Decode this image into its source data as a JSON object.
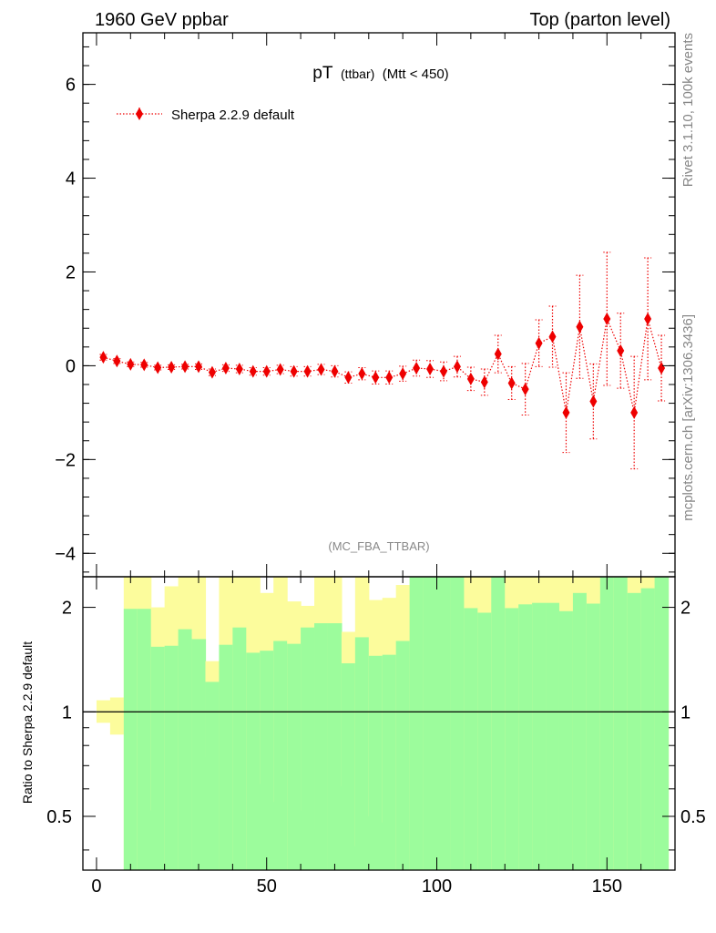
{
  "header": {
    "left": "1960 GeV ppbar",
    "right": "Top (parton level)"
  },
  "side_text": {
    "rivet": "Rivet 3.1.10,  100k events",
    "mcplots": "mcplots.cern.ch [arXiv:1306.3436]"
  },
  "colors": {
    "series": "#ee0000",
    "band_inner": "#9cfc9c",
    "band_outer": "#fcfc9c",
    "axis": "#000000",
    "watermark": "#888888"
  },
  "chart_data": [
    {
      "type": "scatter",
      "title_main": "pT",
      "title_sub": "(ttbar)",
      "title_cond": "(Mtt < 450)",
      "watermark": "(MC_FBA_TTBAR)",
      "legend": "Sherpa 2.2.9 default",
      "legend_position": "top-left",
      "xlim": [
        -4,
        170
      ],
      "ylim": [
        -4.5,
        7.1
      ],
      "yticks": [
        -4,
        -2,
        0,
        2,
        4,
        6
      ],
      "ytick_labels": [
        "−4",
        "−2",
        "0",
        "2",
        "4",
        "6"
      ],
      "series": [
        {
          "name": "Sherpa 2.2.9 default",
          "x": [
            2,
            6,
            10,
            14,
            18,
            22,
            26,
            30,
            34,
            38,
            42,
            46,
            50,
            54,
            58,
            62,
            66,
            70,
            74,
            78,
            82,
            86,
            90,
            94,
            98,
            102,
            106,
            110,
            114,
            118,
            122,
            126,
            130,
            134,
            138,
            142,
            146,
            150,
            154,
            158,
            162,
            166
          ],
          "y": [
            0.18,
            0.1,
            0.03,
            0.02,
            -0.04,
            -0.03,
            -0.02,
            -0.02,
            -0.14,
            -0.05,
            -0.07,
            -0.12,
            -0.12,
            -0.08,
            -0.12,
            -0.12,
            -0.08,
            -0.12,
            -0.25,
            -0.17,
            -0.25,
            -0.25,
            -0.17,
            -0.05,
            -0.07,
            -0.12,
            -0.02,
            -0.28,
            -0.35,
            0.25,
            -0.37,
            -0.5,
            0.48,
            0.62,
            -1.0,
            0.83,
            -0.76,
            1.0,
            0.32,
            -1.0,
            1.0,
            -0.05
          ],
          "yerr": [
            0.06,
            0.05,
            0.05,
            0.05,
            0.05,
            0.05,
            0.05,
            0.06,
            0.07,
            0.07,
            0.08,
            0.08,
            0.08,
            0.09,
            0.1,
            0.1,
            0.11,
            0.12,
            0.12,
            0.13,
            0.14,
            0.14,
            0.16,
            0.17,
            0.18,
            0.2,
            0.22,
            0.25,
            0.28,
            0.4,
            0.35,
            0.55,
            0.5,
            0.65,
            0.85,
            1.1,
            0.8,
            1.42,
            0.8,
            1.2,
            1.3,
            0.7
          ]
        }
      ]
    },
    {
      "type": "area",
      "ylabel": "Ratio to Sherpa 2.2.9 default",
      "xlabel": "",
      "xlim": [
        -4,
        170
      ],
      "ylim": [
        0.35,
        2.45
      ],
      "scale": "log",
      "yticks": [
        0.5,
        1,
        2
      ],
      "ytick_labels": [
        "0.5",
        "1",
        "2"
      ],
      "xticks": [
        0,
        50,
        100,
        150
      ],
      "xtick_labels": [
        "0",
        "50",
        "100",
        "150"
      ],
      "reference_line": 1,
      "bin_width": 4,
      "bin_starts": [
        0,
        4,
        8,
        12,
        16,
        20,
        24,
        28,
        32,
        36,
        40,
        44,
        48,
        52,
        56,
        60,
        64,
        68,
        72,
        76,
        80,
        84,
        88,
        92,
        96,
        100,
        104,
        108,
        112,
        116,
        120,
        124,
        128,
        132,
        136,
        140,
        144,
        148,
        152,
        156,
        160,
        164
      ],
      "inner_low": [
        1.0,
        1.0,
        0.35,
        0.35,
        0.35,
        0.35,
        0.35,
        0.35,
        0.35,
        0.35,
        0.35,
        0.35,
        0.35,
        0.35,
        0.35,
        0.35,
        0.35,
        0.35,
        0.35,
        0.35,
        0.35,
        0.35,
        0.35,
        0.35,
        0.35,
        0.35,
        0.35,
        0.35,
        0.35,
        0.35,
        0.35,
        0.35,
        0.35,
        0.35,
        0.35,
        0.35,
        0.35,
        0.35,
        0.35,
        0.35,
        0.35,
        0.35
      ],
      "inner_high": [
        1.0,
        1.0,
        1.98,
        1.98,
        1.54,
        1.55,
        1.73,
        1.62,
        1.22,
        1.56,
        1.75,
        1.48,
        1.5,
        1.6,
        1.57,
        1.75,
        1.8,
        1.8,
        1.38,
        1.64,
        1.45,
        1.46,
        1.6,
        2.45,
        2.45,
        2.45,
        2.45,
        1.99,
        1.93,
        2.45,
        1.99,
        2.04,
        2.06,
        2.06,
        1.95,
        2.2,
        2.05,
        2.45,
        2.45,
        2.2,
        2.27,
        2.45
      ],
      "outer_low": [
        0.93,
        0.86,
        0.35,
        0.35,
        0.52,
        0.35,
        0.35,
        0.35,
        0.74,
        0.35,
        0.35,
        0.35,
        0.62,
        0.55,
        0.35,
        0.52,
        0.46,
        0.35,
        0.61,
        0.41,
        0.5,
        0.48,
        0.35,
        0.35,
        0.35,
        0.35,
        0.35,
        0.35,
        0.35,
        0.35,
        0.35,
        0.35,
        0.35,
        0.35,
        0.35,
        0.35,
        0.35,
        0.35,
        0.35,
        0.35,
        0.35,
        0.35
      ],
      "outer_high": [
        1.08,
        1.1,
        2.45,
        2.45,
        2.0,
        2.3,
        2.45,
        2.45,
        1.4,
        2.45,
        2.45,
        2.45,
        2.2,
        2.45,
        2.08,
        2.02,
        2.45,
        2.45,
        1.7,
        2.45,
        2.1,
        2.13,
        2.32,
        2.45,
        2.45,
        2.45,
        2.45,
        2.45,
        2.45,
        2.45,
        2.45,
        2.45,
        2.45,
        2.45,
        2.45,
        2.45,
        2.45,
        2.45,
        2.45,
        2.45,
        2.45,
        2.45
      ]
    }
  ]
}
